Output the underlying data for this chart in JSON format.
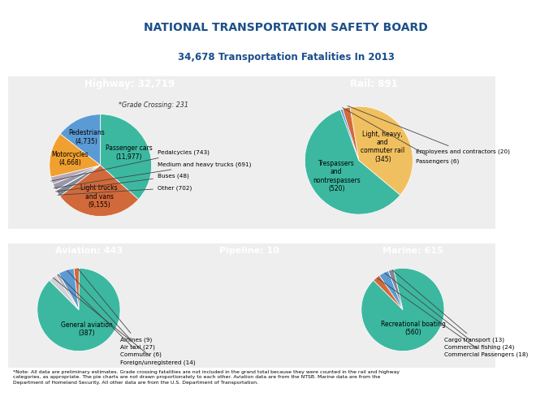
{
  "title_line1": "NATIONAL TRANSPORTATION SAFETY BOARD",
  "title_line2": "34,678 Transportation Fatalities In 2013",
  "title_color": "#1b4f8a",
  "header_bg": "#1b5ea6",
  "header_text_color": "#ffffff",
  "bg_color": "#ffffff",
  "panel_bg": "#f0f0f0",
  "highway_title": "Highway: 32,719",
  "highway_values": [
    4735,
    4668,
    743,
    691,
    48,
    702,
    9155,
    11977
  ],
  "highway_colors": [
    "#5b9bd5",
    "#f0a030",
    "#b8a8b8",
    "#9898aa",
    "#c8a0c0",
    "#808898",
    "#d2693a",
    "#3cb8a0"
  ],
  "highway_grade_crossing": "*Grade Crossing: 231",
  "highway_inner_labels": [
    {
      "text": "Pedestrians\n(4,735)",
      "idx": 0
    },
    {
      "text": "Motorcycles\n(4,668)",
      "idx": 1
    },
    {
      "text": "Light trucks\nand vans\n(9,155)",
      "idx": 6
    },
    {
      "text": "Passenger cars\n(11,977)",
      "idx": 7
    }
  ],
  "highway_outer_labels": [
    {
      "text": "Pedalcycles (743)",
      "idx": 2
    },
    {
      "text": "Medium and heavy trucks (691)",
      "idx": 3
    },
    {
      "text": "Buses (48)",
      "idx": 4
    },
    {
      "text": "Other (702)",
      "idx": 5
    }
  ],
  "rail_title": "Rail: 891",
  "rail_values": [
    520,
    345,
    20,
    6
  ],
  "rail_colors": [
    "#3cb8a0",
    "#f0c060",
    "#d2693a",
    "#5b9bd5"
  ],
  "rail_inner_labels": [
    {
      "text": "Trespassers\nand\nnontrespassers\n(520)",
      "idx": 0
    },
    {
      "text": "Light, heavy,\nand\ncommuter rail\n(345)",
      "idx": 1
    }
  ],
  "rail_outer_labels": [
    {
      "text": "Employees and contractors (20)",
      "idx": 2
    },
    {
      "text": "Passengers (6)",
      "idx": 3
    }
  ],
  "aviation_title": "Aviation: 443",
  "aviation_values": [
    387,
    9,
    27,
    6,
    14
  ],
  "aviation_colors": [
    "#3cb8a0",
    "#d2693a",
    "#5b9bd5",
    "#b8b8c0",
    "#d0d0d8"
  ],
  "aviation_inner_labels": [
    {
      "text": "General aviation\n(387)",
      "idx": 0
    }
  ],
  "aviation_outer_labels": [
    {
      "text": "Airlines (9)",
      "idx": 1
    },
    {
      "text": "Air taxi (27)",
      "idx": 2
    },
    {
      "text": "Commuter (6)",
      "idx": 3
    },
    {
      "text": "Foreign/unregistered (14)",
      "idx": 4
    }
  ],
  "pipeline_title": "Pipeline: 10",
  "marine_title": "Marine: 615",
  "marine_values": [
    560,
    13,
    24,
    18
  ],
  "marine_colors": [
    "#3cb8a0",
    "#808898",
    "#5b9bd5",
    "#d2693a"
  ],
  "marine_inner_labels": [
    {
      "text": "Recreational boating\n(560)",
      "idx": 0
    }
  ],
  "marine_outer_labels": [
    {
      "text": "Cargo transport (13)",
      "idx": 1
    },
    {
      "text": "Commercial fishing (24)",
      "idx": 2
    },
    {
      "text": "Commercial Passengers (18)",
      "idx": 3
    }
  ],
  "note": "*Note: All data are preliminary estimates. Grade crossing fatalities are not included in the grand total because they were counted in the rail and highway\ncategories, as appropriate. The pie charts are not drawn proportionately to each other. Aviation data are from the NTSB. Marine data are from the\nDepartment of Homeland Security. All other data are from the U.S. Department of Transportation."
}
